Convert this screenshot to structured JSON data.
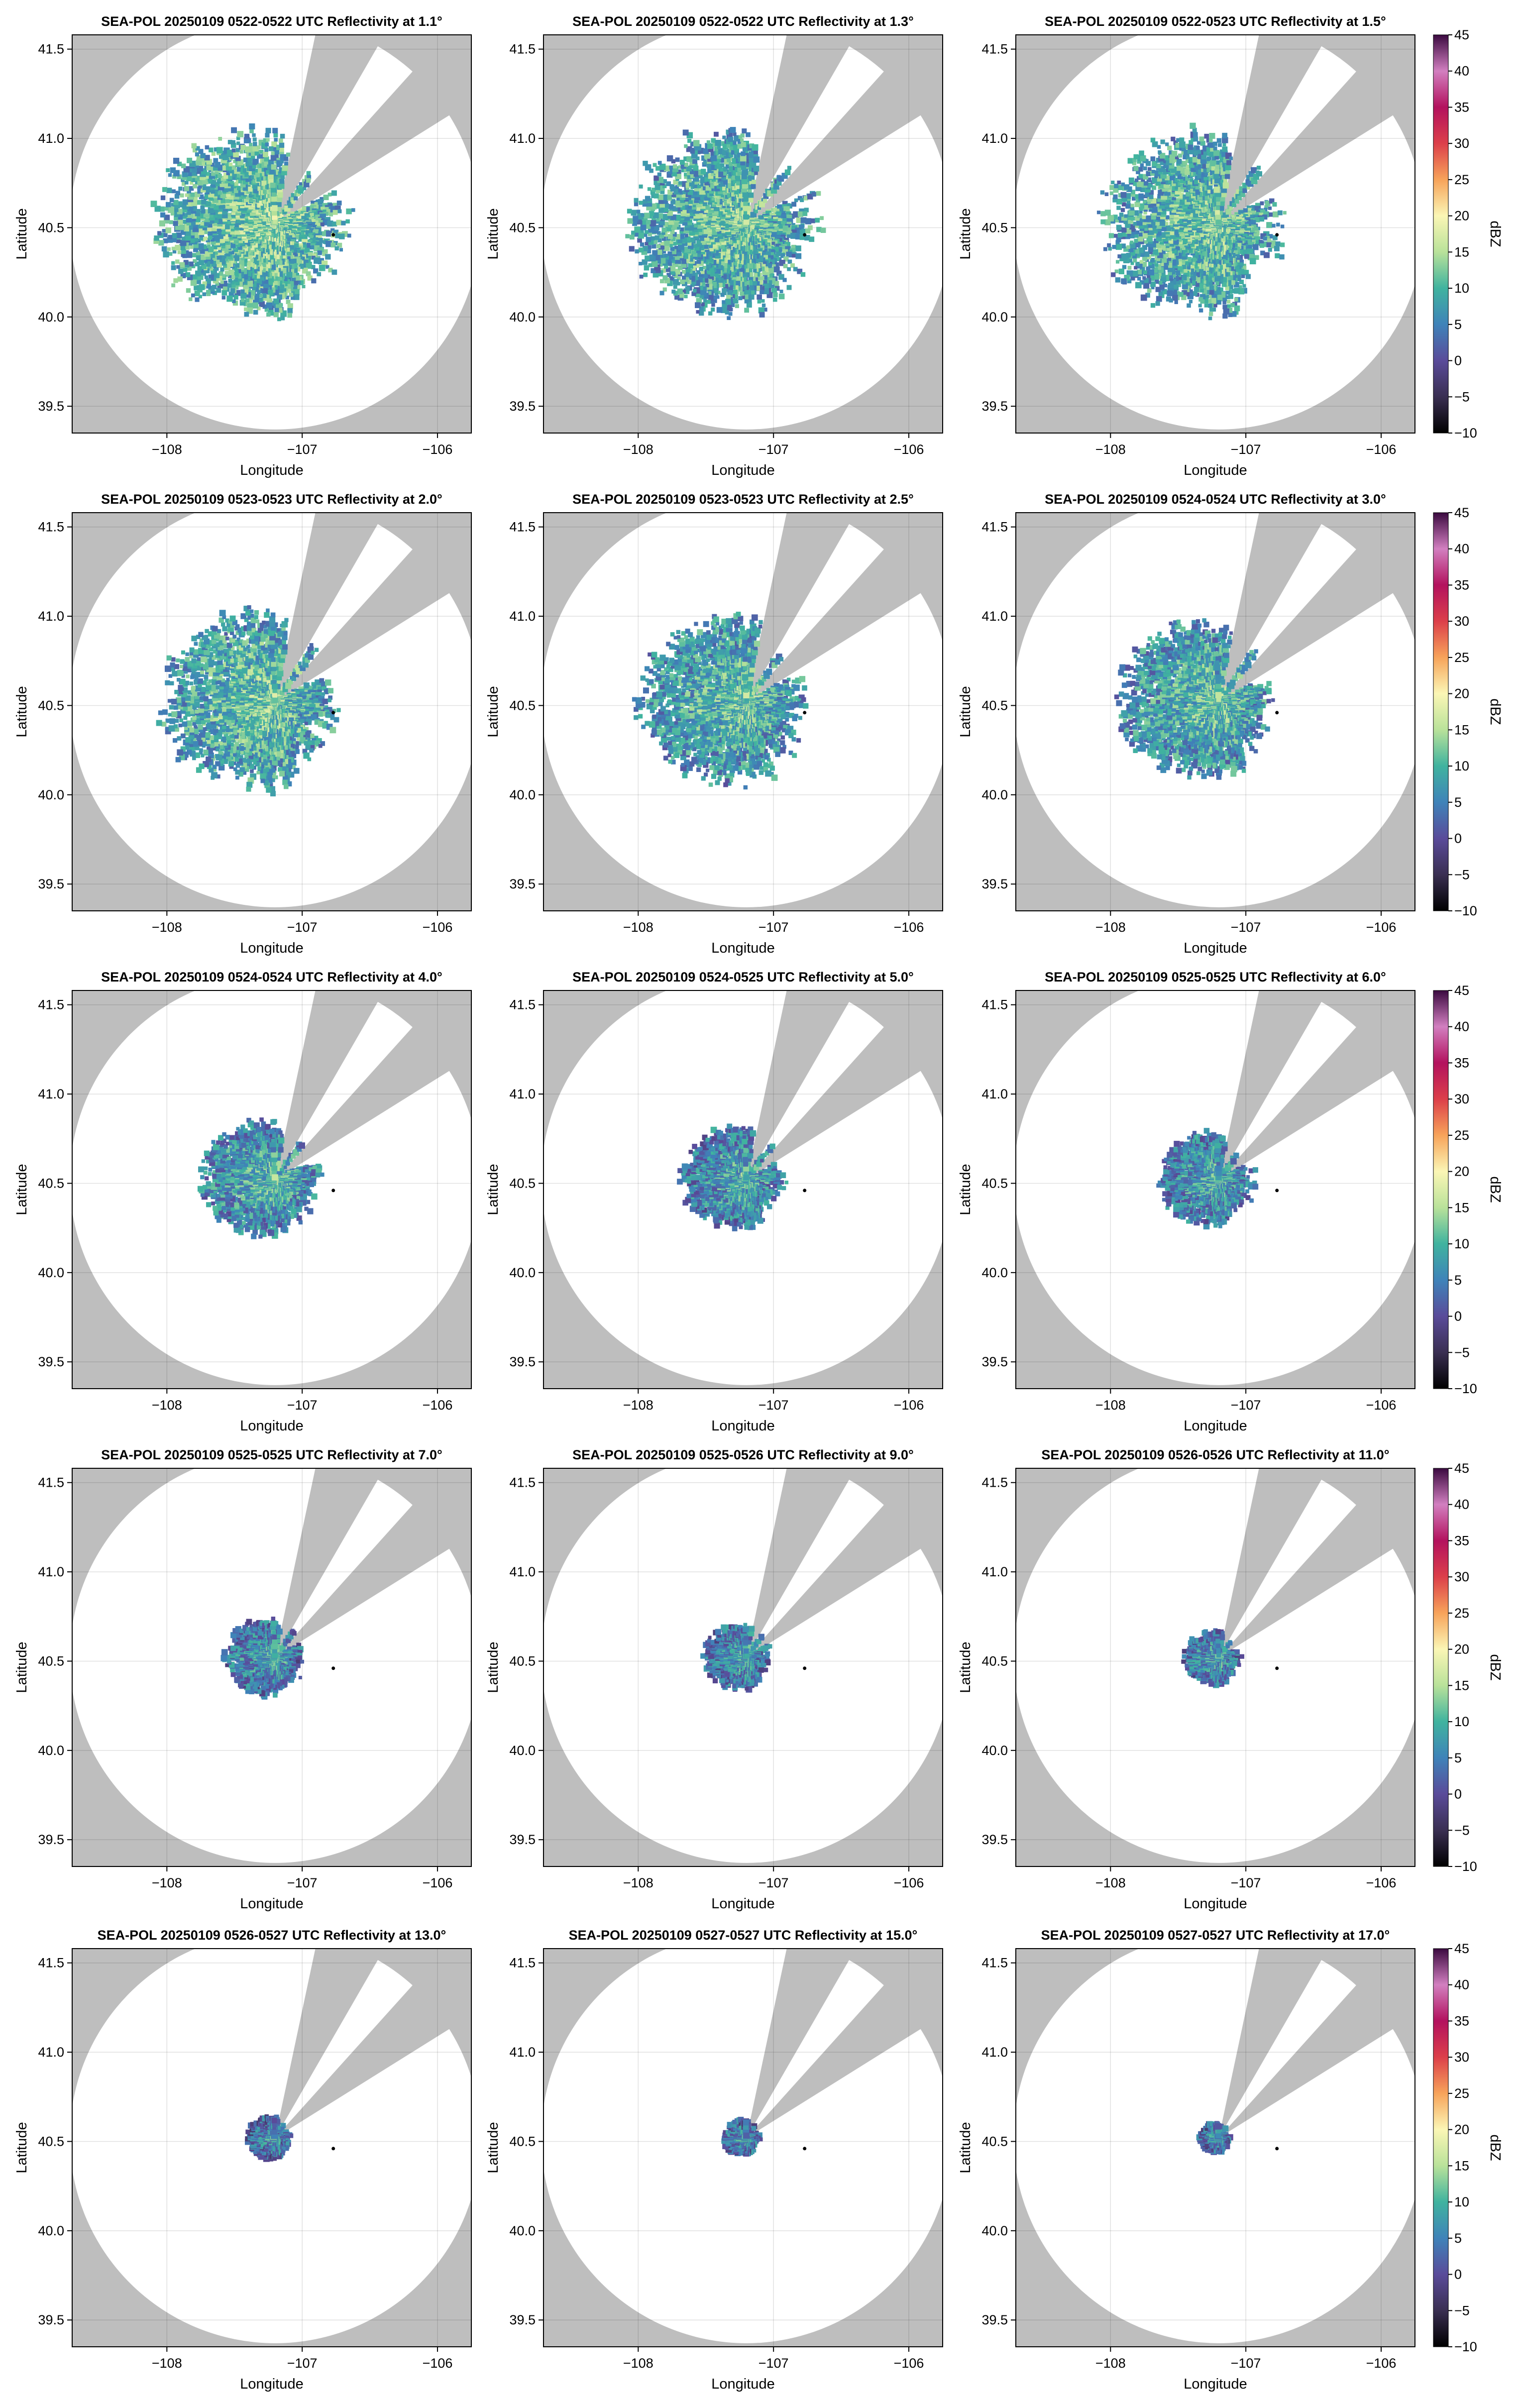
{
  "chart_data": {
    "type": "heatmap",
    "layout": "5x3 small multiples",
    "panels": [
      {
        "title": "SEA-POL 20250109 0522-0522 UTC Reflectivity at 1.1°",
        "elevation_deg": 1.1,
        "echo": {
          "extent_scale": 1.0,
          "mean_dbz": 14
        }
      },
      {
        "title": "SEA-POL 20250109 0522-0522 UTC Reflectivity at 1.3°",
        "elevation_deg": 1.3,
        "echo": {
          "extent_scale": 1.0,
          "mean_dbz": 13
        }
      },
      {
        "title": "SEA-POL 20250109 0522-0523 UTC Reflectivity at 1.5°",
        "elevation_deg": 1.5,
        "echo": {
          "extent_scale": 0.98,
          "mean_dbz": 13
        }
      },
      {
        "title": "SEA-POL 20250109 0523-0523 UTC Reflectivity at 2.0°",
        "elevation_deg": 2.0,
        "echo": {
          "extent_scale": 0.95,
          "mean_dbz": 13
        }
      },
      {
        "title": "SEA-POL 20250109 0523-0523 UTC Reflectivity at 2.5°",
        "elevation_deg": 2.5,
        "echo": {
          "extent_scale": 0.9,
          "mean_dbz": 12
        }
      },
      {
        "title": "SEA-POL 20250109 0524-0524 UTC Reflectivity at 3.0°",
        "elevation_deg": 3.0,
        "echo": {
          "extent_scale": 0.85,
          "mean_dbz": 12
        }
      },
      {
        "title": "SEA-POL 20250109 0524-0524 UTC Reflectivity at 4.0°",
        "elevation_deg": 4.0,
        "echo": {
          "extent_scale": 0.62,
          "mean_dbz": 11
        }
      },
      {
        "title": "SEA-POL 20250109 0524-0525 UTC Reflectivity at 5.0°",
        "elevation_deg": 5.0,
        "echo": {
          "extent_scale": 0.55,
          "mean_dbz": 10
        }
      },
      {
        "title": "SEA-POL 20250109 0525-0525 UTC Reflectivity at 6.0°",
        "elevation_deg": 6.0,
        "echo": {
          "extent_scale": 0.5,
          "mean_dbz": 10
        }
      },
      {
        "title": "SEA-POL 20250109 0525-0525 UTC Reflectivity at 7.0°",
        "elevation_deg": 7.0,
        "echo": {
          "extent_scale": 0.42,
          "mean_dbz": 9
        }
      },
      {
        "title": "SEA-POL 20250109 0525-0526 UTC Reflectivity at 9.0°",
        "elevation_deg": 9.0,
        "echo": {
          "extent_scale": 0.36,
          "mean_dbz": 9
        }
      },
      {
        "title": "SEA-POL 20250109 0526-0526 UTC Reflectivity at 11.0°",
        "elevation_deg": 11.0,
        "echo": {
          "extent_scale": 0.3,
          "mean_dbz": 9
        }
      },
      {
        "title": "SEA-POL 20250109 0526-0527 UTC Reflectivity at 13.0°",
        "elevation_deg": 13.0,
        "echo": {
          "extent_scale": 0.24,
          "mean_dbz": 8
        }
      },
      {
        "title": "SEA-POL 20250109 0527-0527 UTC Reflectivity at 15.0°",
        "elevation_deg": 15.0,
        "echo": {
          "extent_scale": 0.2,
          "mean_dbz": 8
        }
      },
      {
        "title": "SEA-POL 20250109 0527-0527 UTC Reflectivity at 17.0°",
        "elevation_deg": 17.0,
        "echo": {
          "extent_scale": 0.17,
          "mean_dbz": 8
        }
      }
    ],
    "xlabel": "Longitude",
    "ylabel": "Latitude",
    "xlim": [
      -108.7,
      -105.75
    ],
    "ylim": [
      39.35,
      41.58
    ],
    "xticks": [
      -108,
      -107,
      -106
    ],
    "xtick_labels": [
      "−108",
      "−107",
      "−106"
    ],
    "yticks": [
      39.5,
      40.0,
      40.5,
      41.0,
      41.5
    ],
    "ytick_labels": [
      "39.5",
      "40.0",
      "40.5",
      "41.0",
      "41.5"
    ],
    "grid": true,
    "radar_location": {
      "lon": -107.2,
      "lat": 40.52
    },
    "max_range_deg_lat": 1.15,
    "blocked_sectors_deg_azimuth": [
      [
        12,
        30
      ],
      [
        42,
        58
      ]
    ],
    "marker_point": {
      "lon": -106.77,
      "lat": 40.46
    },
    "colorbar": {
      "label": "dBZ",
      "range": [
        -10,
        45
      ],
      "ticks": [
        -10,
        -5,
        0,
        5,
        10,
        15,
        20,
        25,
        30,
        35,
        40,
        45
      ],
      "tick_labels": [
        "−10",
        "−5",
        "0",
        "5",
        "10",
        "15",
        "20",
        "25",
        "30",
        "35",
        "40",
        "45"
      ],
      "colormap_stops": [
        {
          "v": -10,
          "c": "#000000"
        },
        {
          "v": -5,
          "c": "#3a2f52"
        },
        {
          "v": 0,
          "c": "#5a4b9a"
        },
        {
          "v": 5,
          "c": "#3f83b9"
        },
        {
          "v": 10,
          "c": "#40b39f"
        },
        {
          "v": 15,
          "c": "#b9e29a"
        },
        {
          "v": 20,
          "c": "#fbf6b5"
        },
        {
          "v": 25,
          "c": "#f7a35a"
        },
        {
          "v": 30,
          "c": "#dc3f4a"
        },
        {
          "v": 35,
          "c": "#b3125e"
        },
        {
          "v": 40,
          "c": "#d27fc0"
        },
        {
          "v": 45,
          "c": "#3b0a40"
        }
      ]
    },
    "background_color": "#bebebe",
    "coverage_color": "#ffffff"
  }
}
